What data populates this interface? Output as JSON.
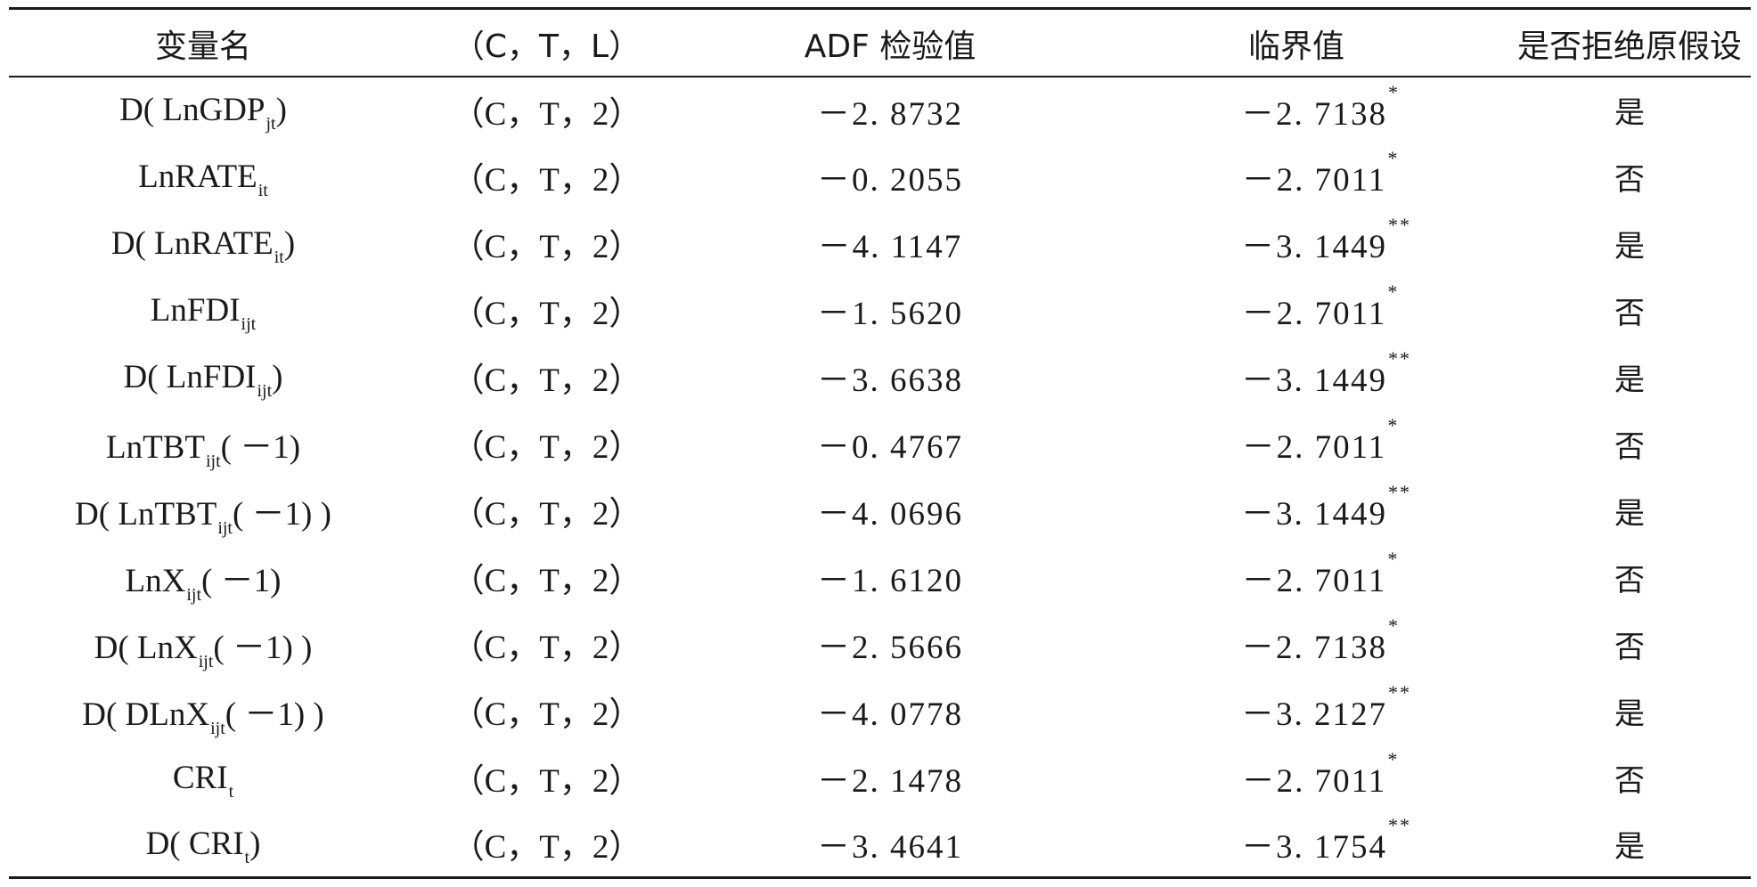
{
  "table": {
    "headers": [
      "变量名",
      "（C，T，L）",
      "ADF 检验值",
      "临界值",
      "是否拒绝原假设"
    ],
    "rows": [
      {
        "var_prefix": "D( LnGDP",
        "var_sub": "jt",
        "var_suffix": ")",
        "spec": "（C，T，2）",
        "adf": "－2. 8732",
        "crit": "－2. 7138",
        "sig": "*",
        "reject": "是"
      },
      {
        "var_prefix": "LnRATE",
        "var_sub": "it",
        "var_suffix": "",
        "spec": "（C，T，2）",
        "adf": "－0. 2055",
        "crit": "－2. 7011",
        "sig": "*",
        "reject": "否"
      },
      {
        "var_prefix": "D( LnRATE",
        "var_sub": "it",
        "var_suffix": ")",
        "spec": "（C，T，2）",
        "adf": "－4. 1147",
        "crit": "－3. 1449",
        "sig": "**",
        "reject": "是"
      },
      {
        "var_prefix": "LnFDI",
        "var_sub": "ijt",
        "var_suffix": "",
        "spec": "（C，T，2）",
        "adf": "－1. 5620",
        "crit": "－2. 7011",
        "sig": "*",
        "reject": "否"
      },
      {
        "var_prefix": "D( LnFDI",
        "var_sub": "ijt",
        "var_suffix": ")",
        "spec": "（C，T，2）",
        "adf": "－3. 6638",
        "crit": "－3. 1449",
        "sig": "**",
        "reject": "是"
      },
      {
        "var_prefix": "LnTBT",
        "var_sub": "ijt",
        "var_suffix": "( －1)",
        "spec": "（C，T，2）",
        "adf": "－0. 4767",
        "crit": "－2. 7011",
        "sig": "*",
        "reject": "否"
      },
      {
        "var_prefix": "D( LnTBT",
        "var_sub": "ijt",
        "var_suffix": "( －1) )",
        "spec": "（C，T，2）",
        "adf": "－4. 0696",
        "crit": "－3. 1449",
        "sig": "**",
        "reject": "是"
      },
      {
        "var_prefix": "LnX",
        "var_sub": "ijt",
        "var_suffix": "( －1)",
        "spec": "（C，T，2）",
        "adf": "－1. 6120",
        "crit": "－2. 7011",
        "sig": "*",
        "reject": "否"
      },
      {
        "var_prefix": "D( LnX",
        "var_sub": "ijt",
        "var_suffix": "( －1) )",
        "spec": "（C，T，2）",
        "adf": "－2. 5666",
        "crit": "－2. 7138",
        "sig": "*",
        "reject": "否"
      },
      {
        "var_prefix": "D( DLnX",
        "var_sub": "ijt",
        "var_suffix": "( －1) )",
        "spec": "（C，T，2）",
        "adf": "－4. 0778",
        "crit": "－3. 2127",
        "sig": "**",
        "reject": "是"
      },
      {
        "var_prefix": "CRI",
        "var_sub": "t",
        "var_suffix": "",
        "spec": "（C，T，2）",
        "adf": "－2. 1478",
        "crit": "－2. 7011",
        "sig": "*",
        "reject": "否"
      },
      {
        "var_prefix": "D( CRI",
        "var_sub": "t",
        "var_suffix": ")",
        "spec": "（C，T，2）",
        "adf": "－3. 4641",
        "crit": "－3. 1754",
        "sig": "**",
        "reject": "是"
      }
    ]
  }
}
